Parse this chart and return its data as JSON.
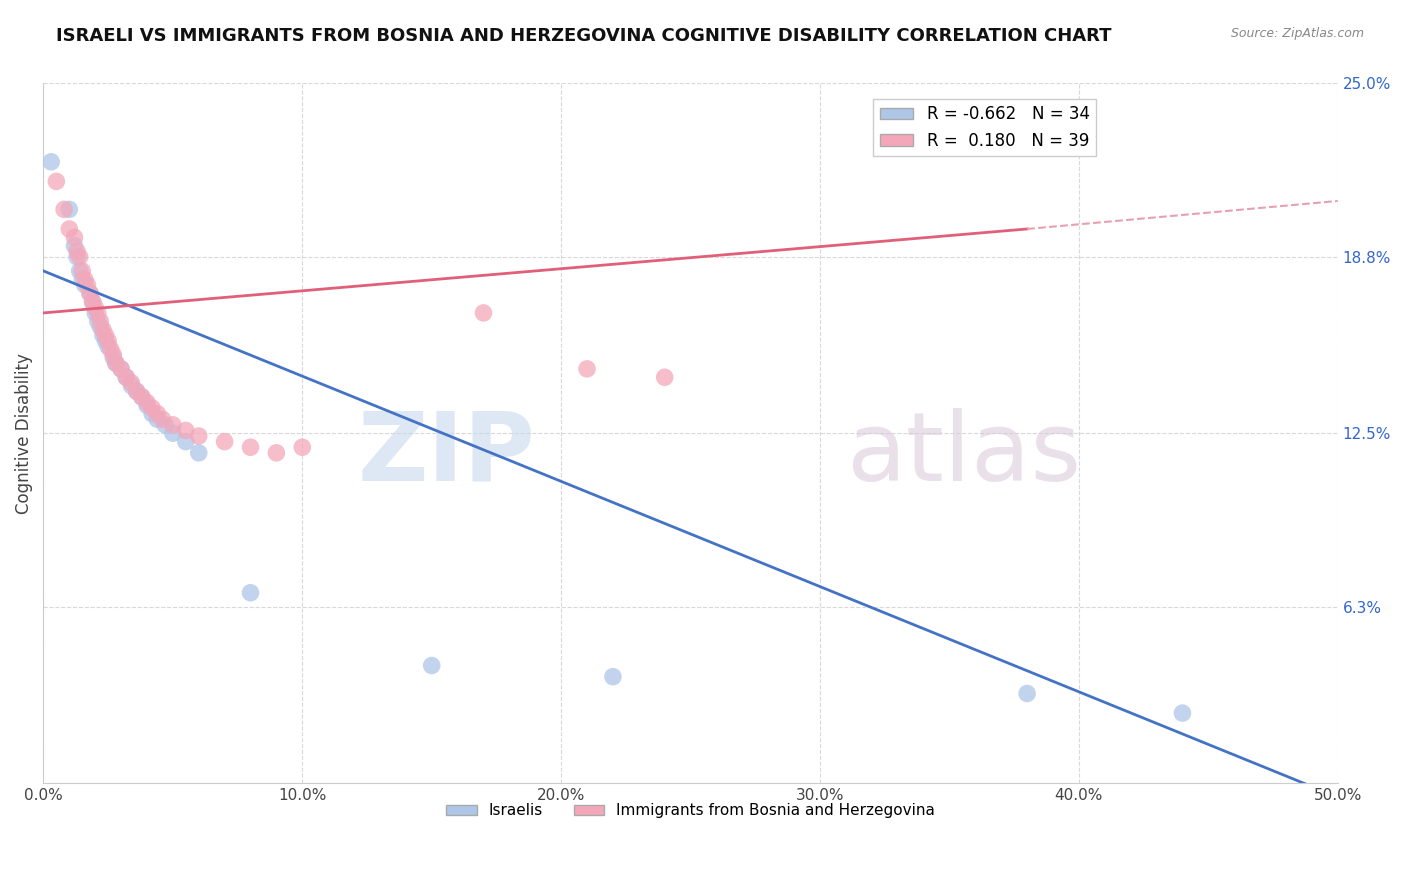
{
  "title": "ISRAELI VS IMMIGRANTS FROM BOSNIA AND HERZEGOVINA COGNITIVE DISABILITY CORRELATION CHART",
  "source": "Source: ZipAtlas.com",
  "ylabel": "Cognitive Disability",
  "xlim": [
    0.0,
    0.5
  ],
  "ylim": [
    0.0,
    0.25
  ],
  "israeli_color": "#aec6e8",
  "bosnian_color": "#f4a7b9",
  "israeli_line_color": "#4472c4",
  "bosnian_line_color": "#e0607a",
  "bosnian_line_dashed_color": "#e8a0b0",
  "background_color": "#ffffff",
  "grid_color": "#d8d8d8",
  "israeli_R": -0.662,
  "bosnian_R": 0.18,
  "israeli_N": 34,
  "bosnian_N": 39,
  "israeli_scatter": [
    [
      0.003,
      0.222
    ],
    [
      0.01,
      0.205
    ],
    [
      0.012,
      0.192
    ],
    [
      0.013,
      0.188
    ],
    [
      0.014,
      0.183
    ],
    [
      0.015,
      0.18
    ],
    [
      0.016,
      0.178
    ],
    [
      0.018,
      0.175
    ],
    [
      0.019,
      0.172
    ],
    [
      0.02,
      0.168
    ],
    [
      0.021,
      0.165
    ],
    [
      0.022,
      0.163
    ],
    [
      0.023,
      0.16
    ],
    [
      0.024,
      0.158
    ],
    [
      0.025,
      0.156
    ],
    [
      0.027,
      0.152
    ],
    [
      0.028,
      0.15
    ],
    [
      0.03,
      0.148
    ],
    [
      0.032,
      0.145
    ],
    [
      0.034,
      0.142
    ],
    [
      0.036,
      0.14
    ],
    [
      0.038,
      0.138
    ],
    [
      0.04,
      0.135
    ],
    [
      0.042,
      0.132
    ],
    [
      0.044,
      0.13
    ],
    [
      0.047,
      0.128
    ],
    [
      0.05,
      0.125
    ],
    [
      0.055,
      0.122
    ],
    [
      0.06,
      0.118
    ],
    [
      0.08,
      0.068
    ],
    [
      0.15,
      0.042
    ],
    [
      0.22,
      0.038
    ],
    [
      0.38,
      0.032
    ],
    [
      0.44,
      0.025
    ]
  ],
  "bosnian_scatter": [
    [
      0.005,
      0.215
    ],
    [
      0.008,
      0.205
    ],
    [
      0.01,
      0.198
    ],
    [
      0.012,
      0.195
    ],
    [
      0.013,
      0.19
    ],
    [
      0.014,
      0.188
    ],
    [
      0.015,
      0.183
    ],
    [
      0.016,
      0.18
    ],
    [
      0.017,
      0.178
    ],
    [
      0.018,
      0.175
    ],
    [
      0.019,
      0.172
    ],
    [
      0.02,
      0.17
    ],
    [
      0.021,
      0.168
    ],
    [
      0.022,
      0.165
    ],
    [
      0.023,
      0.162
    ],
    [
      0.024,
      0.16
    ],
    [
      0.025,
      0.158
    ],
    [
      0.026,
      0.155
    ],
    [
      0.027,
      0.153
    ],
    [
      0.028,
      0.15
    ],
    [
      0.03,
      0.148
    ],
    [
      0.032,
      0.145
    ],
    [
      0.034,
      0.143
    ],
    [
      0.036,
      0.14
    ],
    [
      0.038,
      0.138
    ],
    [
      0.04,
      0.136
    ],
    [
      0.042,
      0.134
    ],
    [
      0.044,
      0.132
    ],
    [
      0.046,
      0.13
    ],
    [
      0.05,
      0.128
    ],
    [
      0.055,
      0.126
    ],
    [
      0.06,
      0.124
    ],
    [
      0.07,
      0.122
    ],
    [
      0.08,
      0.12
    ],
    [
      0.09,
      0.118
    ],
    [
      0.1,
      0.12
    ],
    [
      0.17,
      0.168
    ],
    [
      0.21,
      0.148
    ],
    [
      0.24,
      0.145
    ]
  ],
  "israeli_line": {
    "x0": 0.0,
    "y0": 0.183,
    "x1": 0.5,
    "y1": -0.005
  },
  "bosnian_line_solid": {
    "x0": 0.0,
    "y0": 0.168,
    "x1": 0.38,
    "y1": 0.198
  },
  "bosnian_line_dashed": {
    "x0": 0.38,
    "y0": 0.198,
    "x1": 0.5,
    "y1": 0.208
  }
}
